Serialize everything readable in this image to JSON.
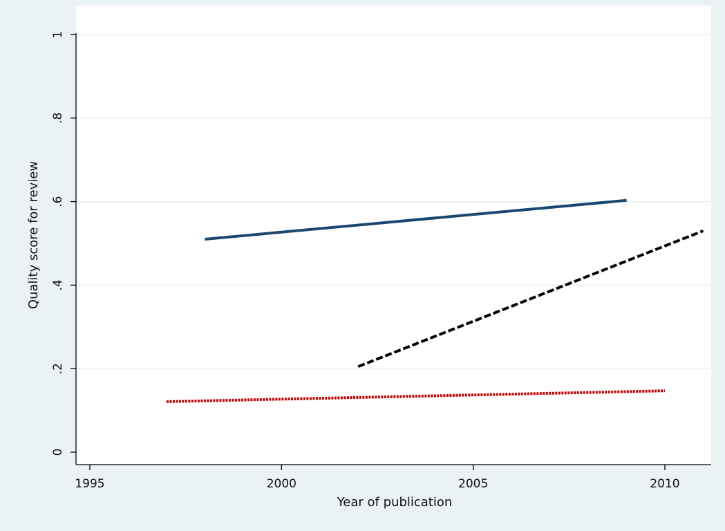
{
  "chart_data": {
    "type": "line",
    "title": "",
    "xlabel": "Year of publication",
    "ylabel": "Quality score for review",
    "xlim": [
      1995,
      2011.2
    ],
    "ylim": [
      0,
      1
    ],
    "x_ticks": [
      1995,
      2000,
      2005,
      2010
    ],
    "x_tick_labels": [
      "1995",
      "2000",
      "2005",
      "2010"
    ],
    "y_ticks": [
      0,
      0.2,
      0.4,
      0.6,
      0.8,
      1
    ],
    "y_tick_labels": [
      "0",
      ".2",
      ".4",
      ".6",
      ".8",
      "1"
    ],
    "grid": "horizontal",
    "legend": "none",
    "series": [
      {
        "style": "solid",
        "color": "#1a476f",
        "x": [
          1998,
          2009
        ],
        "y": [
          0.51,
          0.603
        ]
      },
      {
        "style": "dashed",
        "color": "#000000",
        "x": [
          2002,
          2011
        ],
        "y": [
          0.205,
          0.53
        ]
      },
      {
        "style": "dotted",
        "color": "#c10000",
        "x": [
          1997,
          2010
        ],
        "y": [
          0.121,
          0.147
        ]
      }
    ],
    "background": "#eaf2f3",
    "plot_background": "#ffffff"
  }
}
